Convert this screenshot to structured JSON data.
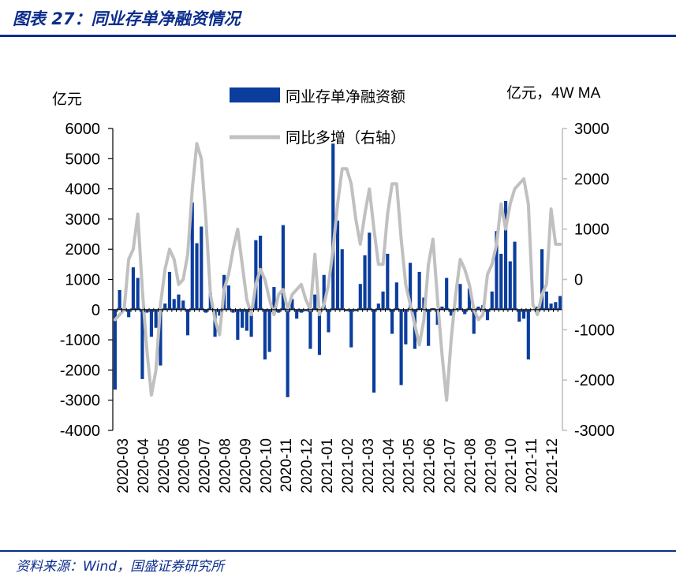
{
  "figure": {
    "title": "图表 27：同业存单净融资情况",
    "source": "资料来源：Wind，国盛证券研究所"
  },
  "colors": {
    "bar": "#0b3d9c",
    "line": "#c0c0c0",
    "brand": "#0b2d8c",
    "axis": "#000000"
  },
  "chart_data": {
    "type": "bar",
    "left_unit": "亿元",
    "right_unit": "亿元，4W MA",
    "left_axis": {
      "min": -4000,
      "max": 6000,
      "ticks": [
        "6000",
        "5000",
        "4000",
        "3000",
        "2000",
        "1000",
        "0",
        "-1000",
        "-2000",
        "-3000",
        "-4000"
      ]
    },
    "right_axis": {
      "min": -3000,
      "max": 3000,
      "ticks": [
        "3000",
        "2000",
        "1000",
        "0",
        "-1000",
        "-2000",
        "-3000"
      ]
    },
    "month_labels": [
      "2020-03",
      "2020-04",
      "2020-05",
      "2020-06",
      "2020-07",
      "2020-08",
      "2020-09",
      "2020-10",
      "2020-11",
      "2020-12",
      "2021-01",
      "2021-02",
      "2021-03",
      "2021-04",
      "2021-05",
      "2021-06",
      "2021-07",
      "2021-08",
      "2021-09",
      "2021-10",
      "2021-11",
      "2021-12"
    ],
    "series": [
      {
        "name": "同业存单净融资额",
        "kind": "bar",
        "axis": "left",
        "values": [
          -2650,
          650,
          -50,
          -250,
          1400,
          1050,
          -2300,
          -100,
          -900,
          -600,
          -1850,
          200,
          1250,
          350,
          500,
          300,
          -850,
          3550,
          2200,
          2750,
          -100,
          550,
          -900,
          -200,
          1150,
          800,
          -100,
          -1000,
          -600,
          -700,
          -900,
          2300,
          2450,
          -1650,
          -1400,
          750,
          -100,
          2800,
          -2900,
          350,
          -300,
          -100,
          -50,
          -1300,
          500,
          -1500,
          1150,
          -750,
          5500,
          2950,
          2000,
          -50,
          -1250,
          -50,
          850,
          1800,
          2550,
          -2750,
          200,
          600,
          1850,
          -800,
          900,
          -2500,
          -1150,
          1550,
          -1300,
          1250,
          400,
          -1200,
          50,
          -500,
          100,
          1050,
          -200,
          50,
          850,
          -150,
          700,
          -800,
          100,
          150,
          -350,
          600,
          2600,
          1850,
          3600,
          1600,
          2250,
          -400,
          -300,
          -1650,
          0,
          100,
          2000,
          600,
          200,
          250,
          450
        ]
      },
      {
        "name": "同比多增（右轴）",
        "kind": "line",
        "axis": "right",
        "values": [
          -800,
          -700,
          -600,
          400,
          600,
          1300,
          -200,
          -1400,
          -2300,
          -1800,
          -500,
          200,
          600,
          400,
          -100,
          0,
          500,
          1800,
          2700,
          2400,
          1200,
          -300,
          -800,
          -1100,
          -200,
          100,
          600,
          1000,
          300,
          -400,
          -700,
          -100,
          200,
          0,
          -400,
          -700,
          -300,
          -200,
          -600,
          -300,
          -200,
          -100,
          -400,
          -600,
          500,
          -700,
          -500,
          -100,
          600,
          1500,
          2200,
          2200,
          1900,
          1200,
          700,
          1300,
          1800,
          1000,
          300,
          300,
          1300,
          1900,
          1900,
          800,
          -100,
          -500,
          -900,
          -1300,
          -800,
          300,
          800,
          -400,
          -1500,
          -2400,
          -1200,
          -300,
          400,
          200,
          -100,
          -600,
          -800,
          -700,
          100,
          300,
          700,
          1500,
          1000,
          1500,
          1800,
          1900,
          2000,
          1500,
          -500,
          -700,
          -300,
          -100,
          1400,
          700,
          700
        ]
      }
    ]
  }
}
